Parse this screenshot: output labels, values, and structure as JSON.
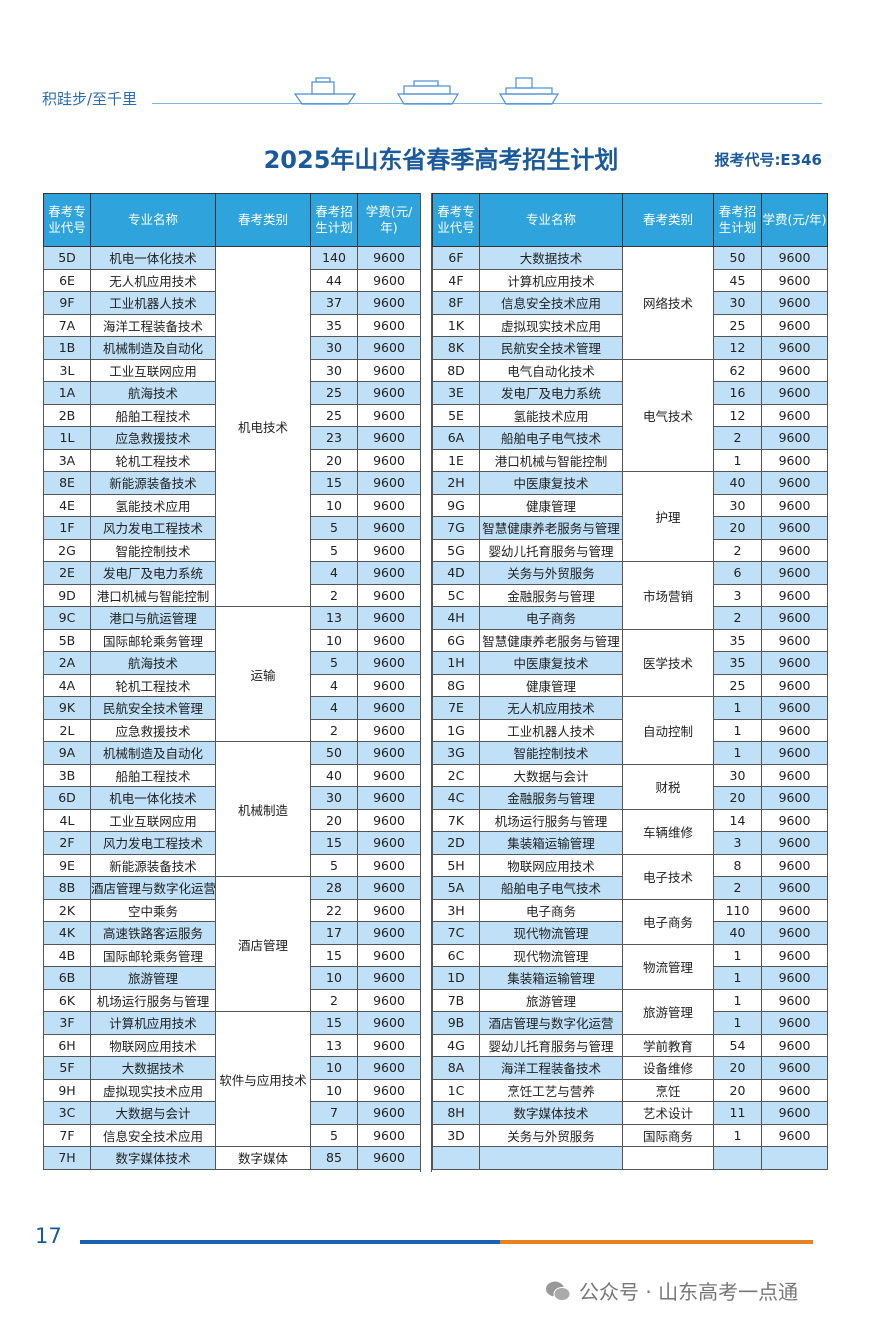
{
  "header": {
    "motto": "积跬步/至千里",
    "title": "2025年山东省春季高考招生计划",
    "exam_code": "报考代号:E346"
  },
  "columns": {
    "code": "春考专业代号",
    "name": "专业名称",
    "category": "春考类别",
    "plan": "春考招生计划",
    "fee": "学费(元/年)"
  },
  "left_groups": [
    {
      "category": "机电技术",
      "rows": [
        [
          "5D",
          "机电一体化技术",
          "140",
          "9600"
        ],
        [
          "6E",
          "无人机应用技术",
          "44",
          "9600"
        ],
        [
          "9F",
          "工业机器人技术",
          "37",
          "9600"
        ],
        [
          "7A",
          "海洋工程装备技术",
          "35",
          "9600"
        ],
        [
          "1B",
          "机械制造及自动化",
          "30",
          "9600"
        ],
        [
          "3L",
          "工业互联网应用",
          "30",
          "9600"
        ],
        [
          "1A",
          "航海技术",
          "25",
          "9600"
        ],
        [
          "2B",
          "船舶工程技术",
          "25",
          "9600"
        ],
        [
          "1L",
          "应急救援技术",
          "23",
          "9600"
        ],
        [
          "3A",
          "轮机工程技术",
          "20",
          "9600"
        ],
        [
          "8E",
          "新能源装备技术",
          "15",
          "9600"
        ],
        [
          "4E",
          "氢能技术应用",
          "10",
          "9600"
        ],
        [
          "1F",
          "风力发电工程技术",
          "5",
          "9600"
        ],
        [
          "2G",
          "智能控制技术",
          "5",
          "9600"
        ],
        [
          "2E",
          "发电厂及电力系统",
          "4",
          "9600"
        ],
        [
          "9D",
          "港口机械与智能控制",
          "2",
          "9600"
        ]
      ]
    },
    {
      "category": "运输",
      "rows": [
        [
          "9C",
          "港口与航运管理",
          "13",
          "9600"
        ],
        [
          "5B",
          "国际邮轮乘务管理",
          "10",
          "9600"
        ],
        [
          "2A",
          "航海技术",
          "5",
          "9600"
        ],
        [
          "4A",
          "轮机工程技术",
          "4",
          "9600"
        ],
        [
          "9K",
          "民航安全技术管理",
          "4",
          "9600"
        ],
        [
          "2L",
          "应急救援技术",
          "2",
          "9600"
        ]
      ]
    },
    {
      "category": "机械制造",
      "rows": [
        [
          "9A",
          "机械制造及自动化",
          "50",
          "9600"
        ],
        [
          "3B",
          "船舶工程技术",
          "40",
          "9600"
        ],
        [
          "6D",
          "机电一体化技术",
          "30",
          "9600"
        ],
        [
          "4L",
          "工业互联网应用",
          "20",
          "9600"
        ],
        [
          "2F",
          "风力发电工程技术",
          "15",
          "9600"
        ],
        [
          "9E",
          "新能源装备技术",
          "5",
          "9600"
        ]
      ]
    },
    {
      "category": "酒店管理",
      "rows": [
        [
          "8B",
          "酒店管理与数字化运营",
          "28",
          "9600"
        ],
        [
          "2K",
          "空中乘务",
          "22",
          "9600"
        ],
        [
          "4K",
          "高速铁路客运服务",
          "17",
          "9600"
        ],
        [
          "4B",
          "国际邮轮乘务管理",
          "15",
          "9600"
        ],
        [
          "6B",
          "旅游管理",
          "10",
          "9600"
        ],
        [
          "6K",
          "机场运行服务与管理",
          "2",
          "9600"
        ]
      ]
    },
    {
      "category": "软件与应用技术",
      "rows": [
        [
          "3F",
          "计算机应用技术",
          "15",
          "9600"
        ],
        [
          "6H",
          "物联网应用技术",
          "13",
          "9600"
        ],
        [
          "5F",
          "大数据技术",
          "10",
          "9600"
        ],
        [
          "9H",
          "虚拟现实技术应用",
          "10",
          "9600"
        ],
        [
          "3C",
          "大数据与会计",
          "7",
          "9600"
        ],
        [
          "7F",
          "信息安全技术应用",
          "5",
          "9600"
        ]
      ]
    },
    {
      "category": "数字媒体",
      "rows": [
        [
          "7H",
          "数字媒体技术",
          "85",
          "9600"
        ]
      ]
    }
  ],
  "right_groups": [
    {
      "category": "网络技术",
      "rows": [
        [
          "6F",
          "大数据技术",
          "50",
          "9600"
        ],
        [
          "4F",
          "计算机应用技术",
          "45",
          "9600"
        ],
        [
          "8F",
          "信息安全技术应用",
          "30",
          "9600"
        ],
        [
          "1K",
          "虚拟现实技术应用",
          "25",
          "9600"
        ],
        [
          "8K",
          "民航安全技术管理",
          "12",
          "9600"
        ]
      ]
    },
    {
      "category": "电气技术",
      "rows": [
        [
          "8D",
          "电气自动化技术",
          "62",
          "9600"
        ],
        [
          "3E",
          "发电厂及电力系统",
          "16",
          "9600"
        ],
        [
          "5E",
          "氢能技术应用",
          "12",
          "9600"
        ],
        [
          "6A",
          "船舶电子电气技术",
          "2",
          "9600"
        ],
        [
          "1E",
          "港口机械与智能控制",
          "1",
          "9600"
        ]
      ]
    },
    {
      "category": "护理",
      "rows": [
        [
          "2H",
          "中医康复技术",
          "40",
          "9600"
        ],
        [
          "9G",
          "健康管理",
          "30",
          "9600"
        ],
        [
          "7G",
          "智慧健康养老服务与管理",
          "20",
          "9600"
        ],
        [
          "5G",
          "婴幼儿托育服务与管理",
          "2",
          "9600"
        ]
      ]
    },
    {
      "category": "市场营销",
      "rows": [
        [
          "4D",
          "关务与外贸服务",
          "6",
          "9600"
        ],
        [
          "5C",
          "金融服务与管理",
          "3",
          "9600"
        ],
        [
          "4H",
          "电子商务",
          "2",
          "9600"
        ]
      ]
    },
    {
      "category": "医学技术",
      "rows": [
        [
          "6G",
          "智慧健康养老服务与管理",
          "35",
          "9600"
        ],
        [
          "1H",
          "中医康复技术",
          "35",
          "9600"
        ],
        [
          "8G",
          "健康管理",
          "25",
          "9600"
        ]
      ]
    },
    {
      "category": "自动控制",
      "rows": [
        [
          "7E",
          "无人机应用技术",
          "1",
          "9600"
        ],
        [
          "1G",
          "工业机器人技术",
          "1",
          "9600"
        ],
        [
          "3G",
          "智能控制技术",
          "1",
          "9600"
        ]
      ]
    },
    {
      "category": "财税",
      "rows": [
        [
          "2C",
          "大数据与会计",
          "30",
          "9600"
        ],
        [
          "4C",
          "金融服务与管理",
          "20",
          "9600"
        ]
      ]
    },
    {
      "category": "车辆维修",
      "rows": [
        [
          "7K",
          "机场运行服务与管理",
          "14",
          "9600"
        ],
        [
          "2D",
          "集装箱运输管理",
          "3",
          "9600"
        ]
      ]
    },
    {
      "category": "电子技术",
      "rows": [
        [
          "5H",
          "物联网应用技术",
          "8",
          "9600"
        ],
        [
          "5A",
          "船舶电子电气技术",
          "2",
          "9600"
        ]
      ]
    },
    {
      "category": "电子商务",
      "rows": [
        [
          "3H",
          "电子商务",
          "110",
          "9600"
        ],
        [
          "7C",
          "现代物流管理",
          "40",
          "9600"
        ]
      ]
    },
    {
      "category": "物流管理",
      "rows": [
        [
          "6C",
          "现代物流管理",
          "1",
          "9600"
        ],
        [
          "1D",
          "集装箱运输管理",
          "1",
          "9600"
        ]
      ]
    },
    {
      "category": "旅游管理",
      "rows": [
        [
          "7B",
          "旅游管理",
          "1",
          "9600"
        ],
        [
          "9B",
          "酒店管理与数字化运营",
          "1",
          "9600"
        ]
      ]
    },
    {
      "category": "学前教育",
      "rows": [
        [
          "4G",
          "婴幼儿托育服务与管理",
          "54",
          "9600"
        ]
      ]
    },
    {
      "category": "设备维修",
      "rows": [
        [
          "8A",
          "海洋工程装备技术",
          "20",
          "9600"
        ]
      ]
    },
    {
      "category": "烹饪",
      "rows": [
        [
          "1C",
          "烹饪工艺与营养",
          "20",
          "9600"
        ]
      ]
    },
    {
      "category": "艺术设计",
      "rows": [
        [
          "8H",
          "数字媒体技术",
          "11",
          "9600"
        ]
      ]
    },
    {
      "category": "国际商务",
      "rows": [
        [
          "3D",
          "关务与外贸服务",
          "1",
          "9600"
        ]
      ]
    },
    {
      "category": "",
      "rows": [
        [
          "",
          "",
          "",
          ""
        ]
      ]
    }
  ],
  "footer": {
    "page_number": "17",
    "watermark": "公众号 · 山东高考一点通"
  },
  "colors": {
    "header_bg": "#2ea3dc",
    "row_alt": "#bfe0f7",
    "title": "#1a5a9c",
    "footer_blue": "#1a63b0",
    "footer_orange": "#e8821e"
  }
}
